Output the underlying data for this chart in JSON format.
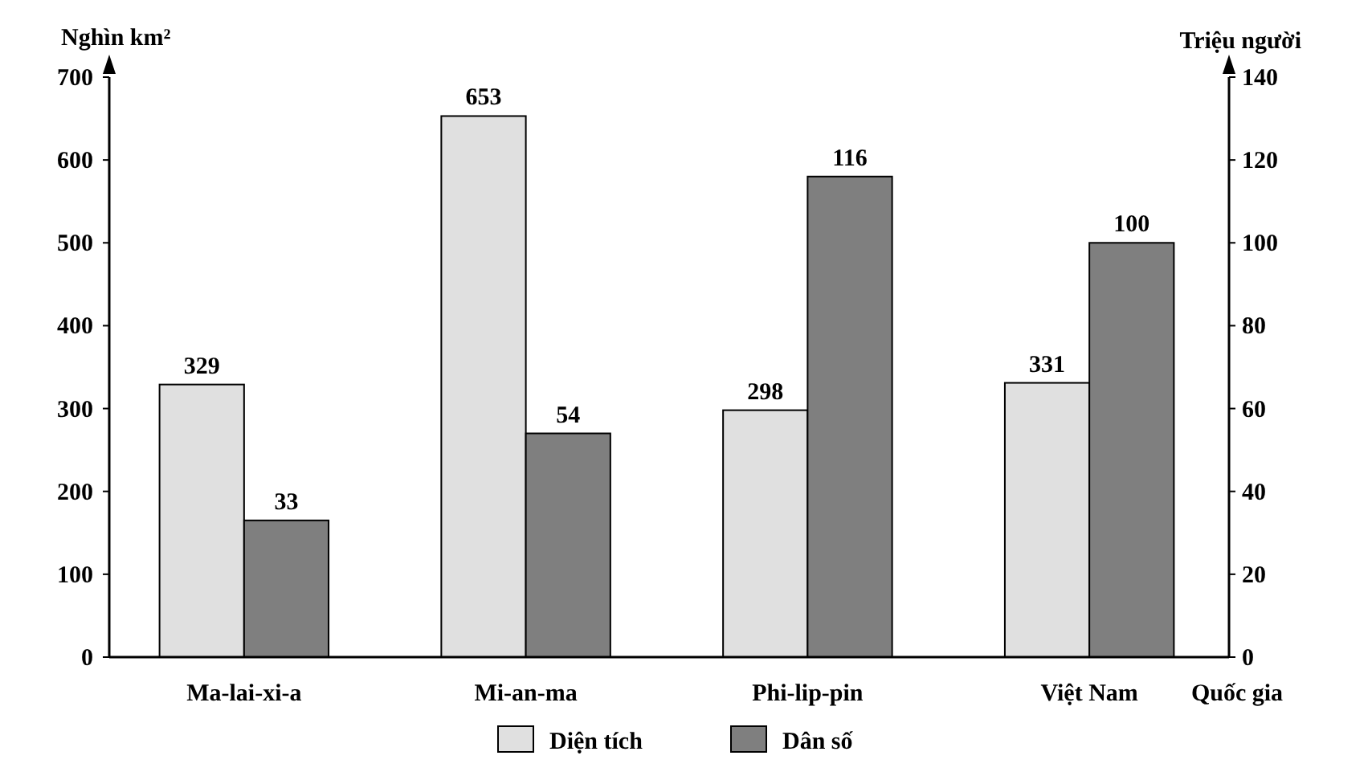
{
  "chart_data": {
    "type": "bar",
    "categories": [
      "Ma-lai-xi-a",
      "Mi-an-ma",
      "Phi-lip-pin",
      "Việt Nam"
    ],
    "xlabel": "Quốc gia",
    "ylabel": "Nghìn km²",
    "y2label": "Triệu người",
    "series": [
      {
        "name": "Diện tích",
        "color": "#e0e0e0",
        "values": [
          329,
          653,
          298,
          331
        ]
      },
      {
        "name": "Dân số",
        "color": "#7f7f7f",
        "axis": "y2",
        "values": [
          33,
          54,
          116,
          100
        ]
      }
    ],
    "ylim": [
      0,
      700
    ],
    "yticks": [
      0,
      100,
      200,
      300,
      400,
      500,
      600,
      700
    ],
    "y2lim": [
      0,
      140
    ],
    "y2ticks": [
      0,
      20,
      40,
      60,
      80,
      100,
      120,
      140
    ],
    "data_labels": true,
    "legend": "bottom",
    "grid": false
  }
}
